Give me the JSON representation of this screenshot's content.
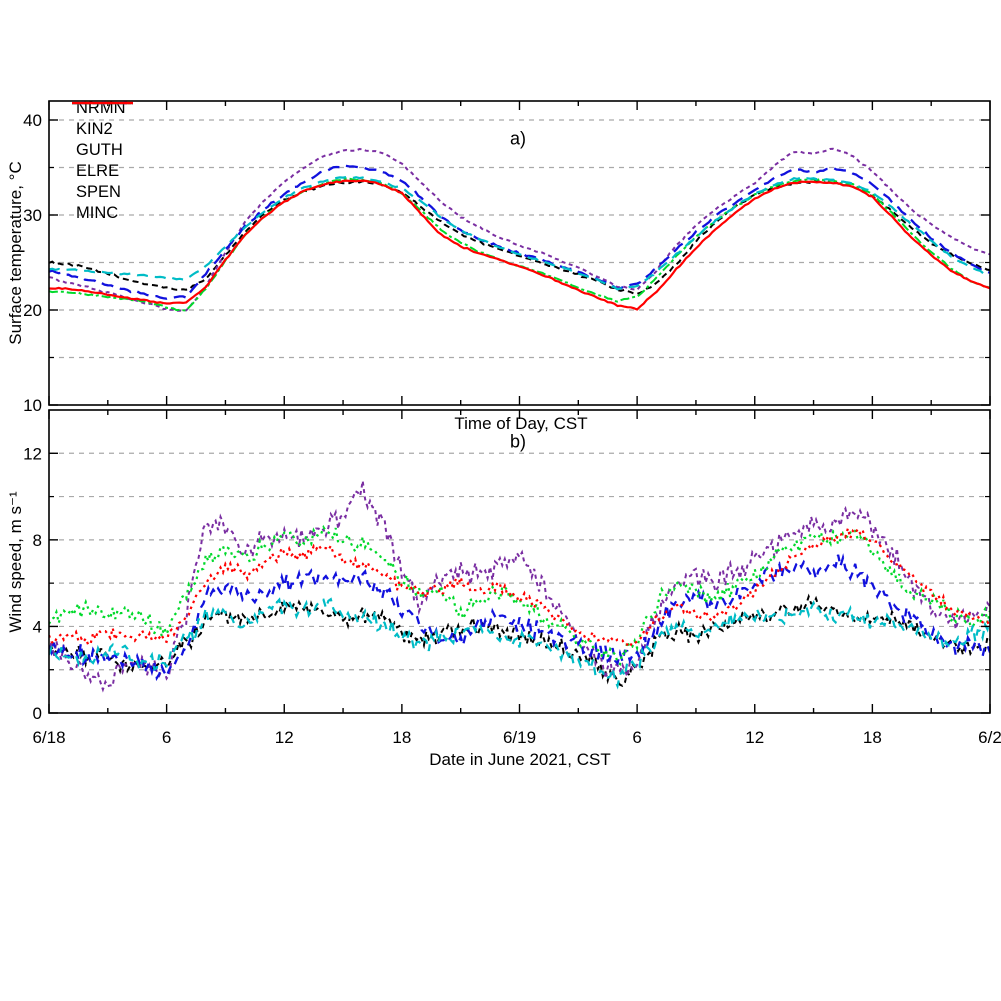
{
  "figure": {
    "panel_a_letter": "a)",
    "panel_b_letter": "b)"
  },
  "legend": {
    "items": [
      {
        "label": "NRMN",
        "color": "#000000",
        "dash": "7 5"
      },
      {
        "label": "KIN2",
        "color": "#7a2ea2",
        "dash": "3.5 3.5"
      },
      {
        "label": "GUTH",
        "color": "#1111dd",
        "dash": "13 8"
      },
      {
        "label": "ELRE",
        "color": "#00d92b",
        "dash": "9 4 4 4"
      },
      {
        "label": "SPEN",
        "color": "#00bcc6",
        "dash": "12 8"
      },
      {
        "label": "MINC",
        "color": "#ff0000",
        "dash": ""
      }
    ]
  },
  "x_axis": {
    "tick_labels": [
      "6/18",
      "6",
      "12",
      "18",
      "6/19",
      "6",
      "12",
      "18",
      "6/2"
    ],
    "label_middle": "Time of Day, CST",
    "label_bottom": "Date in June 2021, CST",
    "hours_start": 0,
    "hours_end": 48,
    "major_every_h": 6,
    "minor_every_h": 3
  },
  "style": {
    "grid_color": "#a9a9a9",
    "axis_color": "#000000"
  },
  "chart_data": [
    {
      "type": "line",
      "panel": "a",
      "title": "a)",
      "ylabel": "Surface temperature, °C",
      "ylim": [
        10,
        42
      ],
      "yticks_major": [
        10,
        20,
        30,
        40
      ],
      "yticks_minor": [
        15,
        25,
        35
      ],
      "gridlines": [
        15,
        20,
        25,
        30,
        35,
        40
      ],
      "x_step_hours": 1,
      "series": [
        {
          "name": "NRMN",
          "color": "#000000",
          "dash": "6 4",
          "width": 2,
          "noise": 0.15,
          "values": [
            25.0,
            24.8,
            24.4,
            23.8,
            23.2,
            22.7,
            22.3,
            22.1,
            23.2,
            25.8,
            28.2,
            30.2,
            31.6,
            32.5,
            33.1,
            33.4,
            33.5,
            33.2,
            32.4,
            30.8,
            29.2,
            28.0,
            27.1,
            26.4,
            25.7,
            25.0,
            24.4,
            23.7,
            23.0,
            22.2,
            21.7,
            22.8,
            24.8,
            27.2,
            29.2,
            30.9,
            32.1,
            32.9,
            33.4,
            33.5,
            33.4,
            33.0,
            32.0,
            30.4,
            28.6,
            27.0,
            25.9,
            25.0,
            24.2
          ]
        },
        {
          "name": "KIN2",
          "color": "#7a2ea2",
          "dash": "4 3.5",
          "width": 2,
          "noise": 0.12,
          "values": [
            23.4,
            22.9,
            22.4,
            21.8,
            21.2,
            20.7,
            20.1,
            19.9,
            22.5,
            26.0,
            29.3,
            31.6,
            33.5,
            35.0,
            36.2,
            36.8,
            36.9,
            36.6,
            35.4,
            33.4,
            31.4,
            29.8,
            28.6,
            27.6,
            26.8,
            26.1,
            25.3,
            24.5,
            23.5,
            22.5,
            22.1,
            24.2,
            26.8,
            28.9,
            30.6,
            32.0,
            33.4,
            35.2,
            36.7,
            36.4,
            37.0,
            36.2,
            34.6,
            32.6,
            30.6,
            29.0,
            27.7,
            26.6,
            25.8
          ]
        },
        {
          "name": "GUTH",
          "color": "#1111dd",
          "dash": "12 7",
          "width": 2.3,
          "noise": 0.15,
          "values": [
            24.1,
            23.7,
            23.2,
            22.6,
            22.1,
            21.6,
            21.2,
            21.4,
            23.8,
            26.4,
            28.8,
            30.7,
            32.2,
            33.5,
            34.6,
            35.2,
            35.0,
            34.6,
            33.6,
            31.8,
            29.8,
            28.4,
            27.4,
            26.6,
            26.0,
            25.4,
            24.7,
            24.0,
            23.2,
            22.3,
            22.7,
            24.4,
            26.4,
            28.2,
            29.9,
            31.3,
            32.6,
            33.9,
            34.8,
            34.5,
            35.0,
            34.4,
            33.3,
            31.4,
            29.4,
            27.6,
            26.1,
            24.9,
            23.9
          ]
        },
        {
          "name": "ELRE",
          "color": "#00d92b",
          "dash": "9 3 3 3",
          "width": 2,
          "noise": 0.12,
          "values": [
            22.0,
            21.9,
            21.6,
            21.4,
            21.1,
            20.8,
            20.3,
            19.9,
            22.2,
            25.2,
            27.9,
            29.9,
            31.4,
            32.5,
            33.3,
            33.8,
            33.7,
            33.3,
            32.3,
            30.4,
            28.4,
            27.1,
            26.1,
            25.3,
            24.6,
            24.0,
            23.2,
            22.4,
            21.6,
            20.9,
            21.4,
            23.4,
            25.7,
            27.7,
            29.4,
            30.9,
            32.1,
            33.0,
            33.6,
            33.8,
            33.6,
            33.2,
            32.2,
            30.2,
            28.0,
            26.1,
            24.4,
            23.1,
            22.3
          ]
        },
        {
          "name": "SPEN",
          "color": "#00bcc6",
          "dash": "11 7",
          "width": 2.2,
          "noise": 0.12,
          "values": [
            24.3,
            24.2,
            24.1,
            23.9,
            23.8,
            23.6,
            23.4,
            23.2,
            24.6,
            26.7,
            28.7,
            30.4,
            31.8,
            32.9,
            33.6,
            34.0,
            33.9,
            33.5,
            32.8,
            31.4,
            29.7,
            28.4,
            27.4,
            26.6,
            25.9,
            25.2,
            24.6,
            23.9,
            23.1,
            22.2,
            22.5,
            24.0,
            25.9,
            27.7,
            29.4,
            30.9,
            32.2,
            33.2,
            33.8,
            33.9,
            33.7,
            33.3,
            32.4,
            30.8,
            29.0,
            27.3,
            25.7,
            24.5,
            23.6
          ]
        },
        {
          "name": "MINC",
          "color": "#ff0000",
          "dash": "",
          "width": 2.2,
          "noise": 0.1,
          "values": [
            22.3,
            22.2,
            22.0,
            21.6,
            21.3,
            21.0,
            20.7,
            20.8,
            22.4,
            25.3,
            27.9,
            29.9,
            31.4,
            32.5,
            33.2,
            33.6,
            33.6,
            33.2,
            32.3,
            30.1,
            27.9,
            26.7,
            25.9,
            25.3,
            24.6,
            23.8,
            23.0,
            22.1,
            21.3,
            20.5,
            20.1,
            21.9,
            24.3,
            26.5,
            28.5,
            30.2,
            31.7,
            32.8,
            33.4,
            33.5,
            33.4,
            33.0,
            31.9,
            29.8,
            27.6,
            25.8,
            24.2,
            23.0,
            22.3
          ]
        }
      ]
    },
    {
      "type": "line",
      "panel": "b",
      "title": "b)",
      "ylabel": "Wind speed, m s⁻¹",
      "ylim": [
        0,
        14
      ],
      "yticks_major": [
        0,
        4,
        8,
        12
      ],
      "yticks_minor": [
        2,
        6,
        10
      ],
      "gridlines": [
        2,
        4,
        6,
        8,
        10,
        12
      ],
      "x_step_hours": 1,
      "series": [
        {
          "name": "NRMN",
          "color": "#000000",
          "dash": "5 4",
          "width": 2,
          "noise": 0.5,
          "values": [
            2.9,
            2.8,
            2.5,
            2.6,
            2.2,
            2.0,
            2.3,
            3.2,
            4.2,
            4.5,
            4.3,
            4.6,
            4.8,
            5.0,
            4.6,
            4.4,
            4.5,
            4.3,
            3.8,
            3.5,
            3.6,
            3.9,
            4.0,
            3.8,
            3.6,
            3.4,
            3.0,
            2.6,
            2.2,
            1.5,
            2.0,
            3.3,
            3.8,
            3.6,
            3.9,
            4.2,
            4.4,
            4.6,
            4.8,
            5.0,
            4.8,
            4.5,
            4.3,
            4.5,
            4.0,
            3.4,
            3.2,
            3.0,
            3.2
          ]
        },
        {
          "name": "KIN2",
          "color": "#7a2ea2",
          "dash": "4 3.5",
          "width": 2,
          "noise": 0.65,
          "values": [
            3.2,
            2.6,
            1.6,
            1.4,
            2.4,
            2.0,
            1.8,
            4.5,
            9.0,
            8.5,
            7.5,
            8.0,
            8.3,
            8.0,
            8.6,
            9.2,
            10.3,
            8.8,
            6.5,
            5.0,
            6.3,
            6.6,
            6.4,
            6.8,
            7.3,
            6.0,
            4.8,
            3.6,
            2.4,
            1.8,
            2.6,
            4.4,
            6.0,
            6.5,
            6.0,
            6.5,
            7.0,
            7.8,
            8.2,
            8.5,
            8.8,
            9.5,
            8.6,
            7.5,
            6.0,
            4.8,
            4.4,
            4.6,
            5.0
          ]
        },
        {
          "name": "GUTH",
          "color": "#1111dd",
          "dash": "8 6",
          "width": 2.3,
          "noise": 0.55,
          "values": [
            2.9,
            2.6,
            2.8,
            2.4,
            2.5,
            2.2,
            1.9,
            3.0,
            5.5,
            5.8,
            5.2,
            5.6,
            6.0,
            6.2,
            6.4,
            6.0,
            6.3,
            5.6,
            4.8,
            4.0,
            3.6,
            3.4,
            4.0,
            4.4,
            4.2,
            3.8,
            3.4,
            3.0,
            2.8,
            2.5,
            2.8,
            4.0,
            5.2,
            5.5,
            5.0,
            5.4,
            5.8,
            6.5,
            6.8,
            6.4,
            7.0,
            6.6,
            5.8,
            5.0,
            4.4,
            3.6,
            3.0,
            3.2,
            3.0
          ]
        },
        {
          "name": "ELRE",
          "color": "#00d92b",
          "dash": "2.5 4",
          "width": 2.2,
          "noise": 0.5,
          "values": [
            4.3,
            4.6,
            4.8,
            4.4,
            4.9,
            4.2,
            3.8,
            5.5,
            7.0,
            7.6,
            7.2,
            7.8,
            8.2,
            8.0,
            8.3,
            8.0,
            7.8,
            7.2,
            6.2,
            5.4,
            5.8,
            4.6,
            5.2,
            5.6,
            5.2,
            4.6,
            4.0,
            3.4,
            2.8,
            2.6,
            3.2,
            5.0,
            6.2,
            5.6,
            5.2,
            5.8,
            6.4,
            7.2,
            7.8,
            8.2,
            8.0,
            8.3,
            7.6,
            6.4,
            5.6,
            5.2,
            4.6,
            4.2,
            4.4
          ]
        },
        {
          "name": "SPEN",
          "color": "#00bcc6",
          "dash": "8 6",
          "width": 2.2,
          "noise": 0.5,
          "values": [
            2.8,
            2.7,
            2.4,
            2.9,
            2.6,
            2.2,
            2.5,
            3.4,
            4.4,
            4.6,
            4.2,
            4.8,
            5.0,
            4.8,
            5.2,
            4.6,
            4.4,
            4.2,
            3.6,
            3.2,
            3.4,
            3.8,
            4.0,
            3.6,
            3.4,
            3.2,
            2.8,
            2.4,
            2.0,
            1.6,
            2.2,
            3.4,
            4.0,
            3.8,
            4.0,
            4.2,
            4.5,
            4.4,
            4.6,
            4.8,
            4.5,
            4.6,
            4.2,
            4.4,
            3.8,
            3.4,
            3.0,
            3.5,
            4.1
          ]
        },
        {
          "name": "MINC",
          "color": "#ff0000",
          "dash": "2.5 4",
          "width": 2.2,
          "noise": 0.35,
          "values": [
            3.3,
            3.6,
            3.4,
            3.8,
            3.5,
            3.6,
            3.4,
            4.5,
            6.0,
            6.8,
            6.4,
            7.0,
            7.4,
            7.2,
            7.6,
            7.2,
            6.8,
            6.4,
            5.8,
            5.6,
            5.8,
            6.0,
            5.6,
            5.8,
            5.4,
            5.0,
            4.4,
            3.8,
            3.4,
            3.2,
            3.4,
            4.2,
            5.0,
            4.6,
            4.4,
            5.0,
            5.6,
            6.4,
            7.2,
            7.8,
            8.2,
            8.4,
            8.0,
            7.0,
            6.2,
            5.6,
            4.8,
            4.4,
            4.2
          ]
        }
      ]
    }
  ]
}
